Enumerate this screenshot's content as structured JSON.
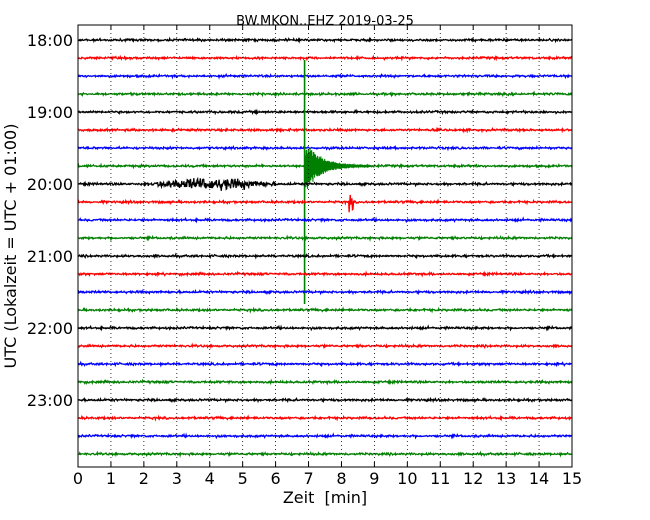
{
  "chart_data": {
    "type": "line",
    "title": "BW.MKON..EHZ 2019-03-25",
    "xlabel": "Zeit  [min]",
    "ylabel": "UTC (Lokalzeit = UTC + 01:00)",
    "xlim": [
      0,
      15
    ],
    "xticks": [
      0,
      1,
      2,
      3,
      4,
      5,
      6,
      7,
      8,
      9,
      10,
      11,
      12,
      13,
      14,
      15
    ],
    "ytick_labels": [
      "18:00",
      "19:00",
      "20:00",
      "21:00",
      "22:00",
      "23:00"
    ],
    "ytick_minutes": [
      0,
      60,
      120,
      180,
      240,
      300
    ],
    "trace_interval_min": 15,
    "trace_start": "18:00",
    "trace_count": 24,
    "trace_colors": [
      "#000000",
      "#ff0000",
      "#0000ff",
      "#008000"
    ],
    "grid": "x-dotted",
    "events": [
      {
        "trace_start": "19:45",
        "time_min": 6.9,
        "description": "local earthquake onset with long coda"
      },
      {
        "trace_start": "20:00",
        "time_min_range": [
          2.0,
          6.0
        ],
        "description": "elevated noise burst"
      },
      {
        "trace_start": "20:15",
        "time_min": 8.3,
        "description": "small spike"
      }
    ]
  }
}
